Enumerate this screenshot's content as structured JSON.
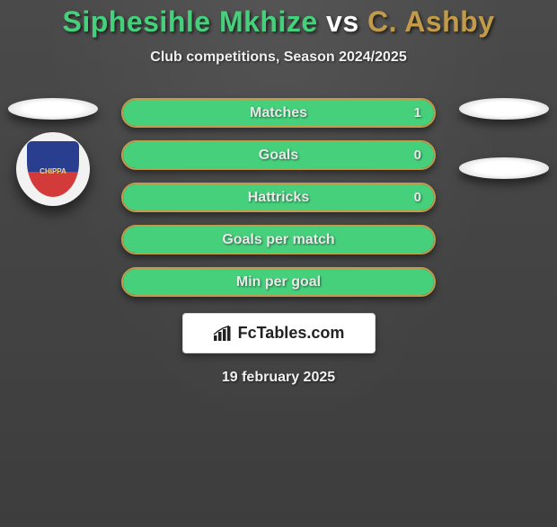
{
  "title": {
    "left": "Siphesihle Mkhize",
    "vs": " vs ",
    "right": "C. Ashby",
    "left_color": "#46d07c",
    "vs_color": "#ffffff",
    "right_color": "#c19a4a"
  },
  "subtitle": "Club competitions, Season 2024/2025",
  "crest": {
    "text": "CHIPPA",
    "bg": "linear-gradient(180deg,#2a3e8f 0%, #2a3e8f 55%, #d33a3a 55%, #d33a3a 100%)"
  },
  "bars": {
    "border_color": "#c19a4a",
    "fill_color": "#46d07c",
    "label_color": "#e9e9e9",
    "value_color": "#e9e9e9",
    "items": [
      {
        "label": "Matches",
        "value": "1",
        "fill": 100
      },
      {
        "label": "Goals",
        "value": "0",
        "fill": 100
      },
      {
        "label": "Hattricks",
        "value": "0",
        "fill": 100
      },
      {
        "label": "Goals per match",
        "value": "",
        "fill": 100
      },
      {
        "label": "Min per goal",
        "value": "",
        "fill": 100
      }
    ]
  },
  "brand": {
    "text": "FcTables.com",
    "bg": "#ffffff",
    "fg": "#222222"
  },
  "date": "19 february 2025"
}
